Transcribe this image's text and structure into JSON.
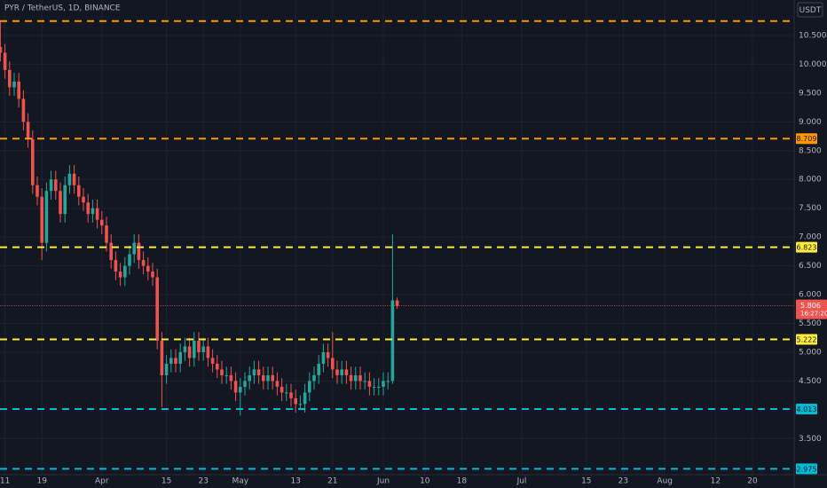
{
  "chart_data": {
    "type": "candlestick",
    "title": "PYR / TetherUS, 1D, BINANCE",
    "currency": "USDT",
    "up_color": "#26a69a",
    "down_color": "#ef5350",
    "grid": true,
    "ylim": [
      2.873,
      11.116
    ],
    "yticks": [
      {
        "value": 3.5,
        "label": "3.500"
      },
      {
        "value": 4.5,
        "label": "4.500"
      },
      {
        "value": 5,
        "label": "5.000"
      },
      {
        "value": 5.5,
        "label": "5.500"
      },
      {
        "value": 6,
        "label": "6.000"
      },
      {
        "value": 6.5,
        "label": "6.500"
      },
      {
        "value": 7,
        "label": "7.000"
      },
      {
        "value": 7.5,
        "label": "7.500"
      },
      {
        "value": 8,
        "label": "8.000"
      },
      {
        "value": 8.5,
        "label": "8.500"
      },
      {
        "value": 9,
        "label": "9.000"
      },
      {
        "value": 9.5,
        "label": "9.500"
      },
      {
        "value": 10,
        "label": "10.000"
      },
      {
        "value": 10.5,
        "label": "10.500"
      }
    ],
    "categories": [
      null,
      "11",
      null,
      null,
      null,
      null,
      null,
      null,
      null,
      "19",
      null,
      null,
      null,
      null,
      null,
      null,
      null,
      null,
      null,
      null,
      null,
      null,
      "Apr",
      null,
      null,
      null,
      null,
      null,
      null,
      null,
      null,
      null,
      null,
      null,
      null,
      null,
      "15",
      null,
      null,
      null,
      null,
      null,
      null,
      null,
      "23",
      null,
      null,
      null,
      null,
      null,
      null,
      null,
      "May",
      null,
      null,
      null,
      null,
      null,
      null,
      null,
      null,
      null,
      null,
      null,
      "13",
      null,
      null,
      null,
      null,
      null,
      null,
      null,
      "21",
      null,
      null,
      null,
      null,
      null,
      null,
      null,
      null,
      null,
      null,
      "Jun",
      null,
      null,
      null,
      null,
      null,
      null,
      null,
      null,
      "10",
      null,
      null,
      null,
      null,
      null,
      null,
      null,
      "18",
      null,
      null,
      null,
      null,
      null,
      null,
      null,
      null,
      null,
      null,
      null,
      null,
      "Jul",
      null,
      null,
      null,
      null,
      null,
      null,
      null,
      null,
      null,
      null,
      null,
      null,
      null,
      "15",
      null,
      null,
      null,
      null,
      null,
      null,
      null,
      "23",
      null,
      null,
      null,
      null,
      null,
      null,
      null,
      null,
      "Aug",
      null,
      null,
      null,
      null,
      null,
      null,
      null,
      null,
      null,
      null,
      "12",
      null,
      null,
      null,
      null,
      null,
      null,
      null,
      "20",
      null,
      null,
      null,
      null,
      null,
      null,
      null,
      null
    ],
    "open": [
      10.3,
      10.2,
      9.9,
      9.6,
      9.7,
      9.4,
      9.0,
      8.7,
      7.9,
      7.7,
      6.9,
      7.8,
      8.0,
      7.8,
      7.4,
      7.9,
      8.1,
      7.9,
      7.7,
      7.6,
      7.4,
      7.5,
      7.3,
      7.2,
      6.9,
      6.6,
      6.4,
      6.3,
      6.5,
      6.7,
      6.9,
      6.6,
      6.5,
      6.4,
      6.3,
      5.2,
      4.6,
      4.8,
      4.9,
      4.8,
      5.0,
      5.1,
      4.9,
      5.2,
      5.0,
      5.1,
      4.9,
      4.8,
      4.7,
      4.6,
      4.6,
      4.5,
      4.3,
      4.4,
      4.5,
      4.6,
      4.7,
      4.6,
      4.5,
      4.6,
      4.5,
      4.4,
      4.3,
      4.3,
      4.2,
      4.1,
      4.1,
      4.3,
      4.5,
      4.6,
      4.8,
      5.0,
      4.9,
      4.7,
      4.6,
      4.7,
      4.6,
      4.5,
      4.6,
      4.5,
      4.5,
      4.4,
      4.4,
      4.4,
      4.5,
      4.5,
      5.9,
      null,
      null,
      null,
      null,
      null,
      null,
      null,
      null,
      null,
      null,
      null,
      null,
      null,
      null,
      null,
      null,
      null,
      null,
      null,
      null,
      null,
      null,
      null,
      null,
      null,
      null,
      null,
      null,
      null,
      null,
      null,
      null,
      null,
      null,
      null,
      null,
      null,
      null,
      null,
      null,
      null,
      null,
      null,
      null,
      null,
      null,
      null,
      null,
      null,
      null,
      null,
      null,
      null,
      null,
      null,
      null,
      null,
      null,
      null,
      null,
      null,
      null,
      null,
      null,
      null,
      null,
      null,
      null,
      null,
      null,
      null,
      null,
      null,
      null,
      null,
      null,
      null,
      null,
      null,
      null,
      null,
      null,
      null,
      null,
      null
    ],
    "high": [
      10.75,
      10.35,
      10.05,
      9.85,
      9.85,
      9.55,
      9.15,
      8.85,
      8.05,
      7.85,
      7.95,
      8.15,
      8.15,
      7.95,
      8.05,
      8.25,
      8.25,
      8.05,
      7.85,
      7.75,
      7.65,
      7.65,
      7.45,
      7.35,
      7.05,
      6.75,
      6.55,
      6.65,
      6.85,
      7.05,
      7.05,
      6.75,
      6.65,
      6.55,
      6.45,
      5.35,
      4.95,
      5.05,
      5.05,
      5.15,
      5.25,
      5.25,
      5.35,
      5.35,
      5.25,
      5.25,
      5.05,
      4.95,
      4.85,
      4.75,
      4.75,
      4.65,
      4.55,
      4.65,
      4.75,
      4.85,
      4.85,
      4.75,
      4.75,
      4.75,
      4.65,
      4.55,
      4.45,
      4.45,
      4.35,
      4.25,
      4.45,
      4.65,
      4.75,
      4.95,
      5.15,
      5.15,
      5.35,
      4.85,
      4.85,
      4.85,
      4.75,
      4.75,
      4.75,
      4.65,
      4.65,
      4.55,
      4.55,
      4.65,
      4.65,
      7.05,
      5.95,
      null,
      null,
      null,
      null,
      null,
      null,
      null,
      null,
      null,
      null,
      null,
      null,
      null,
      null,
      null,
      null,
      null,
      null,
      null,
      null,
      null,
      null,
      null,
      null,
      null,
      null,
      null,
      null,
      null,
      null,
      null,
      null,
      null,
      null,
      null,
      null,
      null,
      null,
      null,
      null,
      null,
      null,
      null,
      null,
      null,
      null,
      null,
      null,
      null,
      null,
      null,
      null,
      null,
      null,
      null,
      null,
      null,
      null,
      null,
      null,
      null,
      null,
      null,
      null,
      null,
      null,
      null,
      null,
      null,
      null,
      null,
      null,
      null,
      null,
      null,
      null,
      null,
      null,
      null,
      null,
      null,
      null,
      null,
      null,
      null
    ],
    "low": [
      10.05,
      9.75,
      9.45,
      9.45,
      9.25,
      8.85,
      8.55,
      7.75,
      7.55,
      6.6,
      6.75,
      7.65,
      7.65,
      7.25,
      7.25,
      7.75,
      7.75,
      7.55,
      7.45,
      7.25,
      7.25,
      7.15,
      7.05,
      6.75,
      6.45,
      6.25,
      6.15,
      6.15,
      6.35,
      6.55,
      6.45,
      6.35,
      6.25,
      6.15,
      5.05,
      4.05,
      4.45,
      4.65,
      4.65,
      4.65,
      4.85,
      4.75,
      4.75,
      4.85,
      4.85,
      4.75,
      4.65,
      4.55,
      4.45,
      4.45,
      4.35,
      4.15,
      3.9,
      4.25,
      4.35,
      4.45,
      4.45,
      4.35,
      4.35,
      4.35,
      4.25,
      4.15,
      4.15,
      4.05,
      3.95,
      4.0,
      3.95,
      4.15,
      4.35,
      4.45,
      4.65,
      4.75,
      4.55,
      4.45,
      4.45,
      4.45,
      4.35,
      4.35,
      4.35,
      4.35,
      4.25,
      4.25,
      4.25,
      4.25,
      4.35,
      4.45,
      5.75,
      null,
      null,
      null,
      null,
      null,
      null,
      null,
      null,
      null,
      null,
      null,
      null,
      null,
      null,
      null,
      null,
      null,
      null,
      null,
      null,
      null,
      null,
      null,
      null,
      null,
      null,
      null,
      null,
      null,
      null,
      null,
      null,
      null,
      null,
      null,
      null,
      null,
      null,
      null,
      null,
      null,
      null,
      null,
      null,
      null,
      null,
      null,
      null,
      null,
      null,
      null,
      null,
      null,
      null,
      null,
      null,
      null,
      null,
      null,
      null,
      null,
      null,
      null,
      null,
      null,
      null,
      null,
      null,
      null,
      null,
      null,
      null,
      null,
      null,
      null,
      null,
      null,
      null,
      null,
      null,
      null,
      null,
      null,
      null,
      null
    ],
    "close": [
      10.2,
      9.9,
      9.6,
      9.7,
      9.4,
      9.0,
      8.7,
      7.9,
      7.7,
      6.9,
      7.8,
      8.0,
      7.8,
      7.4,
      7.9,
      8.1,
      7.9,
      7.7,
      7.6,
      7.4,
      7.5,
      7.3,
      7.2,
      6.9,
      6.6,
      6.4,
      6.3,
      6.5,
      6.7,
      6.9,
      6.6,
      6.5,
      6.4,
      6.3,
      5.2,
      4.6,
      4.8,
      4.9,
      4.8,
      5.0,
      5.1,
      4.9,
      5.2,
      5.0,
      5.1,
      4.9,
      4.8,
      4.7,
      4.6,
      4.6,
      4.5,
      4.3,
      4.4,
      4.5,
      4.6,
      4.7,
      4.6,
      4.5,
      4.6,
      4.5,
      4.4,
      4.3,
      4.3,
      4.2,
      4.1,
      4.1,
      4.3,
      4.5,
      4.6,
      4.8,
      5.0,
      4.9,
      4.7,
      4.6,
      4.7,
      4.6,
      4.5,
      4.6,
      4.5,
      4.5,
      4.4,
      4.4,
      4.4,
      4.5,
      4.5,
      5.9,
      5.806,
      null,
      null,
      null,
      null,
      null,
      null,
      null,
      null,
      null,
      null,
      null,
      null,
      null,
      null,
      null,
      null,
      null,
      null,
      null,
      null,
      null,
      null,
      null,
      null,
      null,
      null,
      null,
      null,
      null,
      null,
      null,
      null,
      null,
      null,
      null,
      null,
      null,
      null,
      null,
      null,
      null,
      null,
      null,
      null,
      null,
      null,
      null,
      null,
      null,
      null,
      null,
      null,
      null,
      null,
      null,
      null,
      null,
      null,
      null,
      null,
      null,
      null,
      null,
      null,
      null,
      null,
      null,
      null,
      null,
      null,
      null,
      null,
      null,
      null,
      null,
      null,
      null,
      null,
      null,
      null,
      null,
      null,
      null,
      null,
      null
    ],
    "levels": [
      {
        "value": 10.75,
        "color": "#ff9800",
        "axis_label": false
      },
      {
        "value": 8.709,
        "color": "#ff9800",
        "axis_label": true
      },
      {
        "value": 6.823,
        "color": "#ffeb3b",
        "axis_label": true
      },
      {
        "value": 5.222,
        "color": "#ffeb3b",
        "axis_label": true
      },
      {
        "value": 4.013,
        "color": "#00bcd4",
        "axis_label": true
      },
      {
        "value": 2.975,
        "color": "#00bcd4",
        "axis_label": true
      }
    ],
    "last": {
      "price": 5.806,
      "countdown": "16:27:20",
      "color": "#ef5350"
    }
  }
}
